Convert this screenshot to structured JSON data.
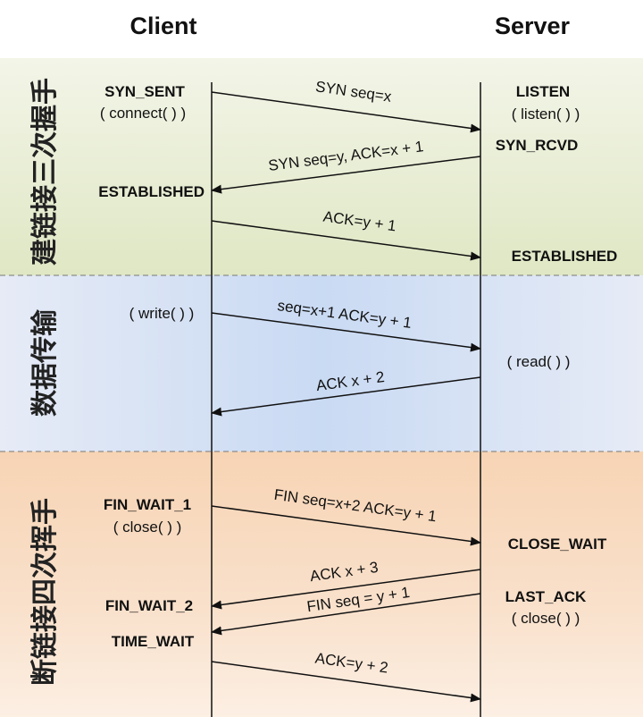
{
  "headers": {
    "client": "Client",
    "server": "Server"
  },
  "sections": [
    {
      "label": "建链接三次握手",
      "color": "#e8eed3"
    },
    {
      "label": "数据传输",
      "color": "#dce5f6"
    },
    {
      "label": "断链接四次挥手",
      "color": "#f8dcc2"
    }
  ],
  "client_states": {
    "syn_sent": "SYN_SENT",
    "connect": "( connect( ) )",
    "established": "ESTABLISHED",
    "write": "( write( ) )",
    "fin_wait_1": "FIN_WAIT_1",
    "close": "( close( ) )",
    "fin_wait_2": "FIN_WAIT_2",
    "time_wait": "TIME_WAIT"
  },
  "server_states": {
    "listen": "LISTEN",
    "listen_call": "( listen( ) )",
    "syn_rcvd": "SYN_RCVD",
    "established": "ESTABLISHED",
    "read": "( read( ) )",
    "close_wait": "CLOSE_WAIT",
    "last_ack": "LAST_ACK",
    "close": "( close( ) )"
  },
  "messages": [
    {
      "label": "SYN seq=x",
      "direction": "client-to-server"
    },
    {
      "label": "SYN seq=y, ACK=x + 1",
      "direction": "server-to-client"
    },
    {
      "label": "ACK=y + 1",
      "direction": "client-to-server"
    },
    {
      "label": "seq=x+1 ACK=y + 1",
      "direction": "client-to-server"
    },
    {
      "label": "ACK x + 2",
      "direction": "server-to-client"
    },
    {
      "label": "FIN seq=x+2 ACK=y + 1",
      "direction": "client-to-server"
    },
    {
      "label": "ACK x + 3",
      "direction": "server-to-client"
    },
    {
      "label": "FIN seq = y + 1",
      "direction": "server-to-client"
    },
    {
      "label": "ACK=y + 2",
      "direction": "client-to-server"
    }
  ]
}
